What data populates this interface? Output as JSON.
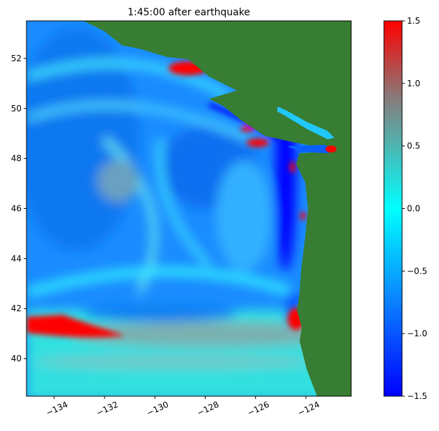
{
  "title": "1:45:00 after earthquake",
  "map": {
    "x_ticks": [
      "−134",
      "−132",
      "−130",
      "−128",
      "−126",
      "−124"
    ],
    "x_tick_values": [
      -134,
      -132,
      -130,
      -128,
      -126,
      -124
    ],
    "x_range": [
      -135.1,
      -122.2
    ],
    "y_ticks": [
      "40",
      "42",
      "44",
      "46",
      "48",
      "50",
      "52"
    ],
    "y_tick_values": [
      40,
      42,
      44,
      46,
      48,
      50,
      52
    ],
    "y_range": [
      38.5,
      53.5
    ],
    "land_color": "#377d33",
    "ocean_colors": {
      "deep_negative": "#0000ff",
      "negative": "#0a8cff",
      "zero": "#00ffff",
      "positive": "#808080",
      "high": "#ff0000"
    }
  },
  "colorbar": {
    "range": [
      -1.5,
      1.5
    ],
    "ticks": [
      "1.5",
      "1.0",
      "0.5",
      "0.0",
      "−0.5",
      "−1.0",
      "−1.5"
    ],
    "tick_values": [
      1.5,
      1.0,
      0.5,
      0.0,
      -0.5,
      -1.0,
      -1.5
    ],
    "colormap": [
      "#0000ff",
      "#00ffff",
      "#808080",
      "#ff0000"
    ]
  }
}
